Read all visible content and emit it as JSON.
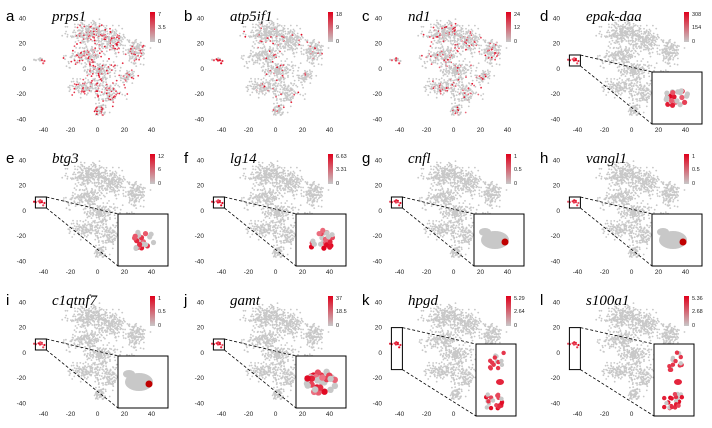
{
  "chart_data": {
    "type": "scatter",
    "description_axes": {
      "xlim": [
        -50,
        50
      ],
      "ylim": [
        -42,
        45
      ],
      "x_ticks": [
        -40,
        -20,
        0,
        20,
        40
      ],
      "y_ticks": [
        -40,
        -20,
        0,
        20,
        40
      ],
      "x_tick_labels": [
        "-40",
        "-20",
        "0",
        "20",
        "40"
      ],
      "y_tick_labels": [
        "-40",
        "-20",
        "0",
        "20",
        "40"
      ],
      "background_color": "#c8c8c8",
      "low_color": "#c8c8c8",
      "high_color": "#e0001b",
      "grid": false
    },
    "panels": [
      {
        "letter": "a",
        "gene": "prps1",
        "cb_max": "7",
        "cb_mid": "3.5",
        "cb_min": "0",
        "pattern": "broad",
        "density": 0.22,
        "inset": null
      },
      {
        "letter": "b",
        "gene": "atp5if1",
        "cb_max": "18",
        "cb_mid": "9",
        "cb_min": "0",
        "pattern": "broad",
        "density": 0.06,
        "inset": null
      },
      {
        "letter": "c",
        "gene": "nd1",
        "cb_max": "24",
        "cb_mid": "12",
        "cb_min": "0",
        "pattern": "broad",
        "density": 0.14,
        "inset": null
      },
      {
        "letter": "d",
        "gene": "epak-daa",
        "cb_max": "308",
        "cb_mid": "154",
        "cb_min": "0",
        "pattern": "cluster",
        "density": 0,
        "inset": "blob"
      },
      {
        "letter": "e",
        "gene": "btg3",
        "cb_max": "12",
        "cb_mid": "6",
        "cb_min": "0",
        "pattern": "cluster",
        "density": 0,
        "inset": "blob"
      },
      {
        "letter": "f",
        "gene": "lg14",
        "cb_max": "6.63",
        "cb_mid": "3.31",
        "cb_min": "0",
        "pattern": "cluster",
        "density": 0,
        "inset": "blob-strong"
      },
      {
        "letter": "g",
        "gene": "cnfl",
        "cb_max": "1",
        "cb_mid": "0.5",
        "cb_min": "0",
        "pattern": "small",
        "density": 0,
        "inset": "single"
      },
      {
        "letter": "h",
        "gene": "vangl1",
        "cb_max": "1",
        "cb_mid": "0.5",
        "cb_min": "0",
        "pattern": "small",
        "density": 0,
        "inset": "single"
      },
      {
        "letter": "i",
        "gene": "c1qtnf7",
        "cb_max": "1",
        "cb_mid": "0.5",
        "cb_min": "0",
        "pattern": "small",
        "density": 0,
        "inset": "single"
      },
      {
        "letter": "j",
        "gene": "gamt",
        "cb_max": "37",
        "cb_mid": "18.5",
        "cb_min": "0",
        "pattern": "small",
        "density": 0,
        "inset": "dense"
      },
      {
        "letter": "k",
        "gene": "hpgd",
        "cb_max": "5.29",
        "cb_mid": "2.64",
        "cb_min": "0",
        "pattern": "tall",
        "density": 0,
        "inset": "tall"
      },
      {
        "letter": "l",
        "gene": "s100a1",
        "cb_max": "5.36",
        "cb_mid": "2.68",
        "cb_min": "0",
        "pattern": "tall",
        "density": 0,
        "inset": "tall"
      }
    ]
  }
}
